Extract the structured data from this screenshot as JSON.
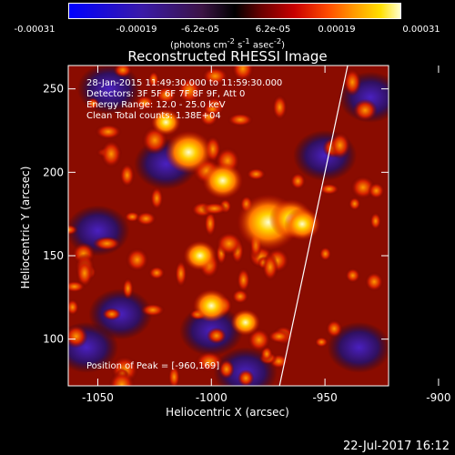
{
  "colorbar": {
    "ticks": [
      "-0.00031",
      "-0.00019",
      "-6.2e-05",
      "6.2e-05",
      "0.00019",
      "0.00031"
    ],
    "units_base": "(photons cm",
    "units_exp1": "-2",
    "units_mid": " s",
    "units_exp2": "-1",
    "units_mid2": " asec",
    "units_exp3": "-2",
    "units_end": ")"
  },
  "chart_data": {
    "type": "heatmap",
    "title": "Reconstructed RHESSI Image",
    "xlabel": "Heliocentric X (arcsec)",
    "ylabel": "Heliocentric Y (arcsec)",
    "xlim": [
      -1063,
      -922
    ],
    "ylim": [
      72,
      264
    ],
    "x_ticks": [
      "-1050",
      "-1000",
      "-950",
      "-900"
    ],
    "y_ticks": [
      "100",
      "150",
      "200",
      "250"
    ],
    "color_range": [
      -0.00031,
      0.00031
    ],
    "limb_line": [
      [
        -970,
        72
      ],
      [
        -940,
        264
      ]
    ],
    "peak": [
      -960,
      169
    ]
  },
  "info_lines": [
    "28-Jan-2015 11:49:30.000 to 11:59:30.000",
    "Detectors: 3F 5F 6F 7F 8F 9F, Att 0",
    "Energy Range: 12.0 - 25.0 keV",
    "Clean     Total counts: 1.38E+04"
  ],
  "peak_text": "Position of Peak = [-960,169]",
  "date_stamp": "22-Jul-2017 16:12"
}
